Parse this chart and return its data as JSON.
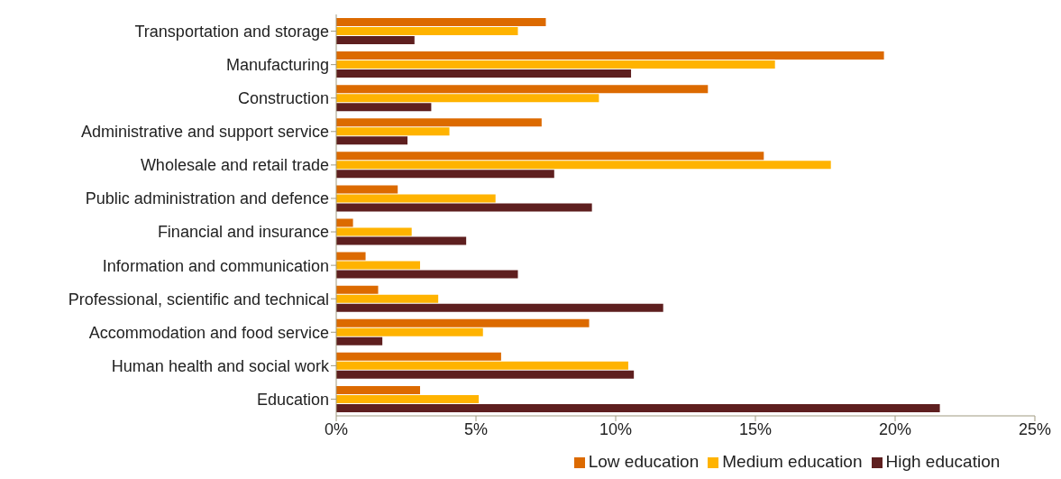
{
  "chart_data": {
    "type": "bar",
    "orientation": "horizontal",
    "categories": [
      "Transportation and storage",
      "Manufacturing",
      "Construction",
      "Administrative and support service",
      "Wholesale and retail trade",
      "Public administration and defence",
      "Financial and insurance",
      "Information and communication",
      "Professional, scientific and technical",
      "Accommodation and food service",
      "Human health and social work",
      "Education"
    ],
    "series": [
      {
        "name": "Low education",
        "color": "#dc6a00",
        "values": [
          7.5,
          19.6,
          13.3,
          7.35,
          15.3,
          2.2,
          0.6,
          1.05,
          1.5,
          9.05,
          5.9,
          3.0
        ]
      },
      {
        "name": "Medium education",
        "color": "#ffb300",
        "values": [
          6.5,
          15.7,
          9.4,
          4.05,
          17.7,
          5.7,
          2.7,
          3.0,
          3.65,
          5.25,
          10.45,
          5.1
        ]
      },
      {
        "name": "High education",
        "color": "#5e1f1f",
        "values": [
          2.8,
          10.55,
          3.4,
          2.55,
          7.8,
          9.15,
          4.65,
          6.5,
          11.7,
          1.65,
          10.65,
          21.6
        ]
      }
    ],
    "xlim": [
      0,
      25
    ],
    "xticks": [
      {
        "value": 0,
        "label": "0%"
      },
      {
        "value": 5,
        "label": "5%"
      },
      {
        "value": 10,
        "label": "10%"
      },
      {
        "value": 15,
        "label": "15%"
      },
      {
        "value": 20,
        "label": "20%"
      },
      {
        "value": 25,
        "label": "25%"
      }
    ],
    "grid": false,
    "legend": "bottom"
  }
}
